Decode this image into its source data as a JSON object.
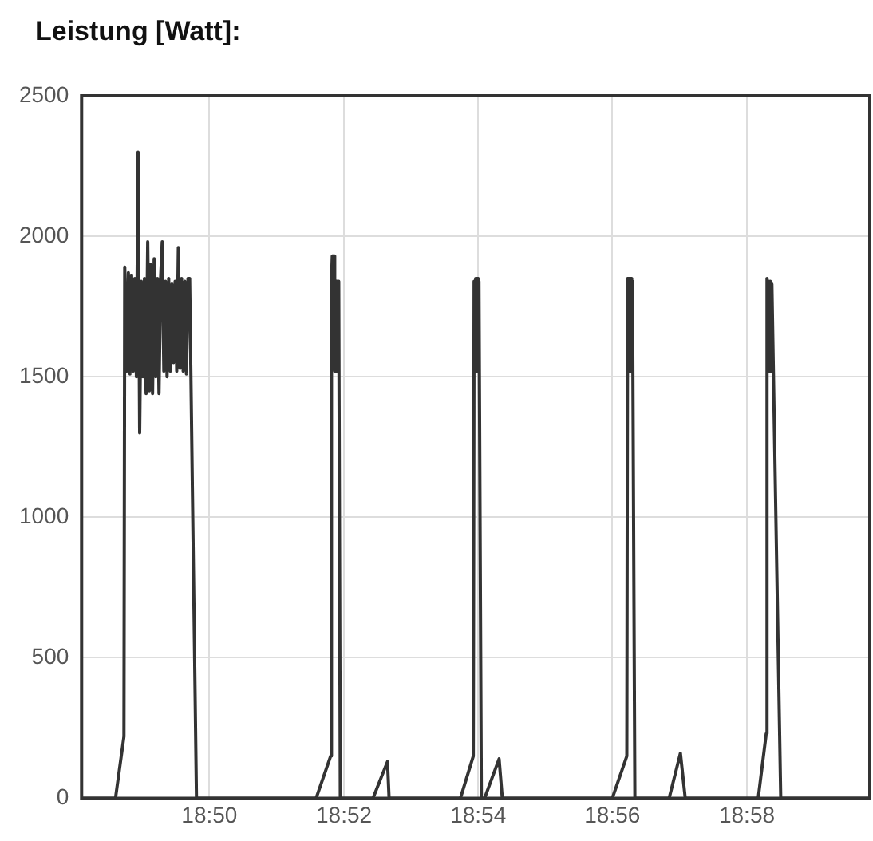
{
  "chart_data": {
    "type": "line",
    "title": "Leistung [Watt]:",
    "x": [
      18.8016,
      18.81,
      18.8121,
      18.8123,
      18.8124,
      18.8128,
      18.8132,
      18.8136,
      18.814,
      18.8144,
      18.8148,
      18.8152,
      18.8156,
      18.816,
      18.8164,
      18.8168,
      18.8172,
      18.8176,
      18.818,
      18.8184,
      18.8188,
      18.8192,
      18.8196,
      18.82,
      18.8204,
      18.8208,
      18.8212,
      18.8216,
      18.822,
      18.8224,
      18.8228,
      18.8232,
      18.8236,
      18.824,
      18.8244,
      18.8248,
      18.8252,
      18.8256,
      18.826,
      18.8264,
      18.8268,
      18.8272,
      18.8276,
      18.828,
      18.8284,
      18.8301,
      18.8598,
      18.8634,
      18.8636,
      18.8638,
      18.8642,
      18.8644,
      18.8646,
      18.8648,
      18.865,
      18.8652,
      18.8654,
      18.8658,
      18.8739,
      18.8775,
      18.8779,
      18.8956,
      18.8988,
      18.899,
      18.8992,
      18.8994,
      18.8996,
      18.8998,
      18.9,
      18.9002,
      18.9008,
      18.9016,
      18.9052,
      18.906,
      18.9333,
      18.9369,
      18.9371,
      18.9373,
      18.9375,
      18.9377,
      18.9379,
      18.9381,
      18.9383,
      18.9389,
      18.9474,
      18.9502,
      18.9514,
      18.9695,
      18.9715,
      18.9717,
      18.9719,
      18.9721,
      18.9723,
      18.9725,
      18.9727,
      18.9729,
      18.9751,
      18.9972
    ],
    "series": [
      {
        "color": "#333333",
        "values": [
          0,
          0,
          220,
          1890,
          1890,
          1520,
          1870,
          1510,
          1860,
          1520,
          1850,
          1500,
          2300,
          1300,
          1840,
          1500,
          1850,
          1440,
          1980,
          1450,
          1900,
          1440,
          1920,
          1500,
          1850,
          1440,
          1850,
          1980,
          1520,
          1840,
          1500,
          1850,
          1520,
          1830,
          1550,
          1840,
          1520,
          1960,
          1530,
          1850,
          1520,
          1840,
          1510,
          1850,
          1850,
          0,
          0,
          150,
          1840,
          1930,
          1930,
          1520,
          1840,
          1520,
          1840,
          1520,
          1840,
          0,
          0,
          130,
          0,
          0,
          150,
          1840,
          1520,
          1850,
          1520,
          1850,
          1520,
          1840,
          0,
          0,
          140,
          0,
          0,
          150,
          1850,
          1520,
          1850,
          1520,
          1850,
          1520,
          1840,
          0,
          0,
          160,
          0,
          0,
          230,
          1850,
          1520,
          1840,
          1520,
          1840,
          1520,
          1830,
          0,
          0
        ]
      }
    ],
    "xlim": [
      18.8016,
      18.9972
    ],
    "xticks": [
      {
        "value": 18.8333,
        "label": "18:50"
      },
      {
        "value": 18.8667,
        "label": "18:52"
      },
      {
        "value": 18.9,
        "label": "18:54"
      },
      {
        "value": 18.9333,
        "label": "18:56"
      },
      {
        "value": 18.9667,
        "label": "18:58"
      }
    ],
    "ylim": [
      0,
      2500
    ],
    "yticks": [
      0,
      500,
      1000,
      1500,
      2000,
      2500
    ],
    "grid": true,
    "legend": false,
    "marker": "none",
    "line_style": "solid"
  }
}
